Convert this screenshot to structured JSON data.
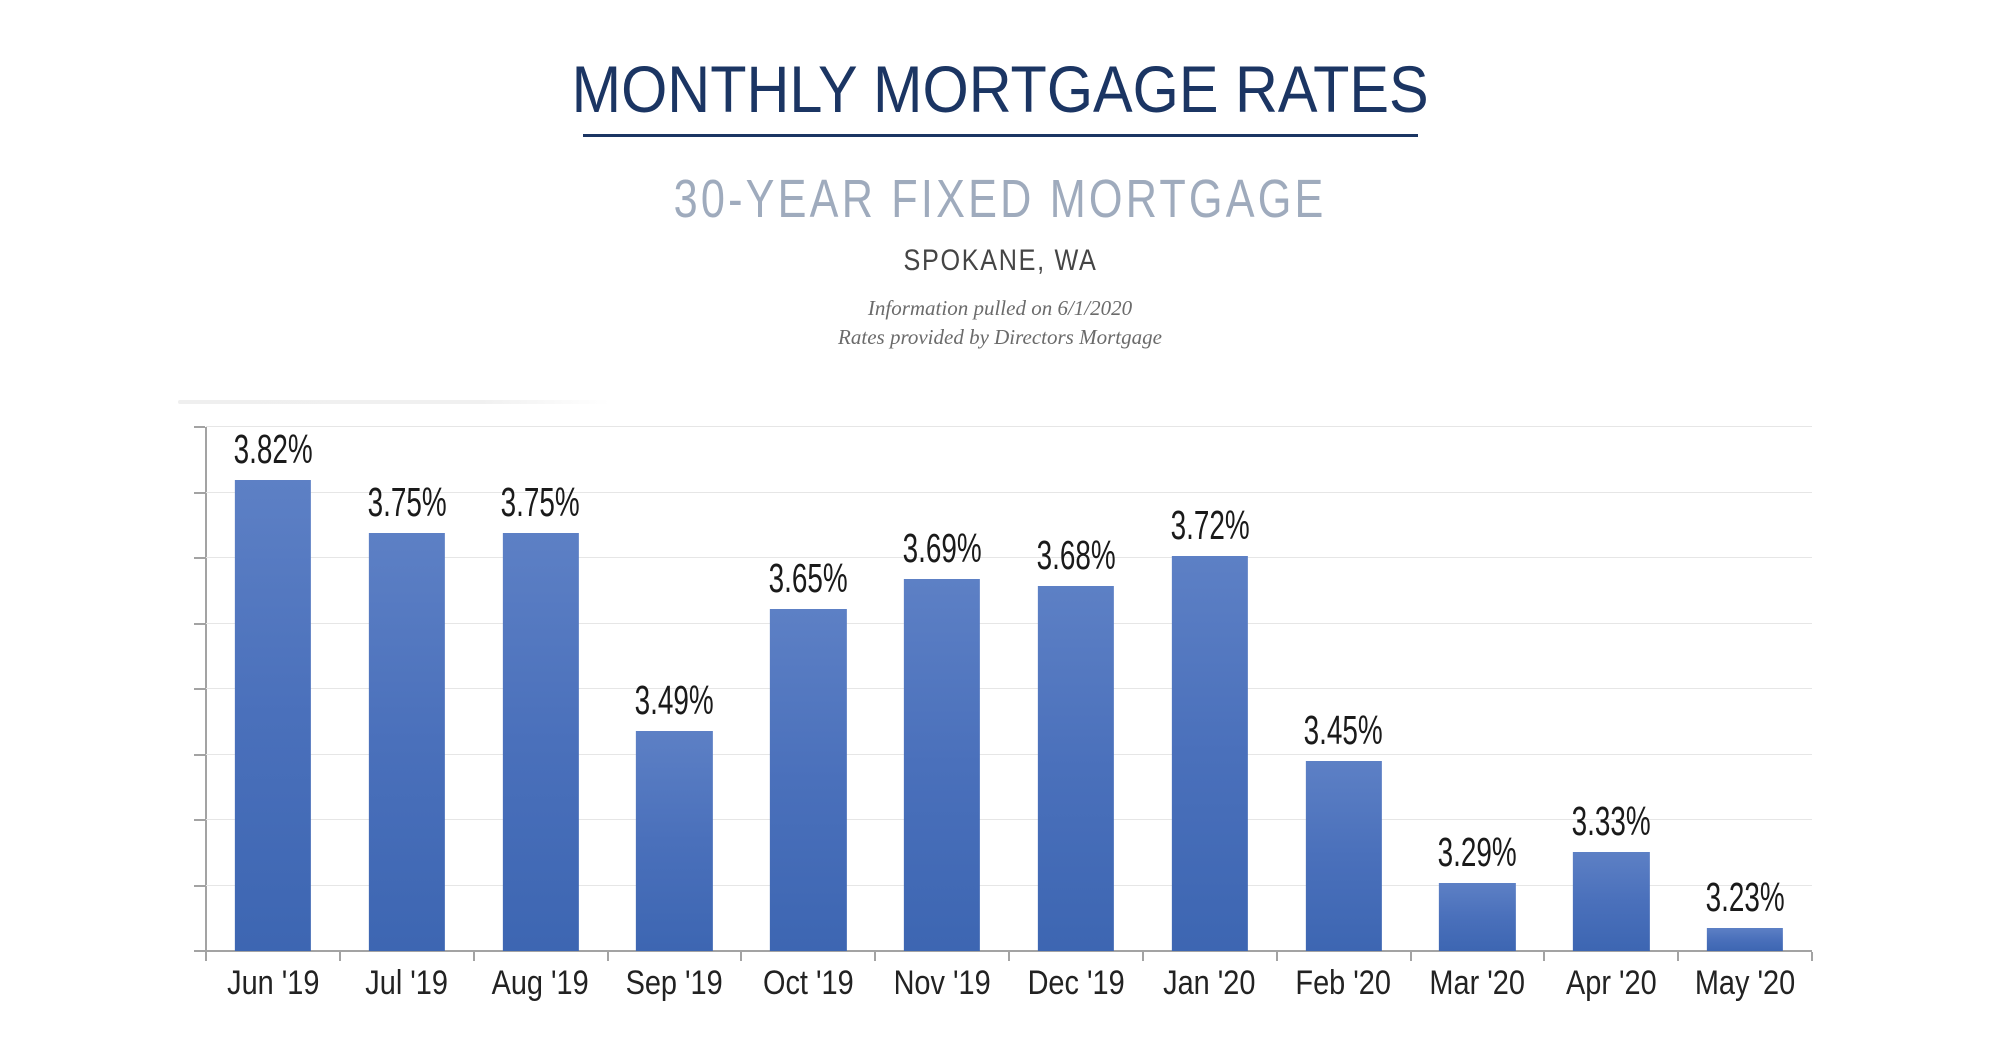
{
  "header": {
    "title": "MONTHLY MORTGAGE RATES",
    "subtitle": "30-YEAR FIXED MORTGAGE",
    "location": "SPOKANE, WA",
    "note_line1": "Information pulled on 6/1/2020",
    "note_line2": "Rates provided by Directors Mortgage"
  },
  "colors": {
    "navy": "#1b3563",
    "subtitle": "#9fabbd",
    "location": "#454545",
    "note": "#6b6b6b",
    "grid": "#e6e6e6",
    "axis": "#a3a3a3",
    "bar_top": "#5d80c5",
    "bar_mid": "#4a70bb",
    "bar_bot": "#3d66b2",
    "bar_label": "#1a1a1a",
    "x_label": "#222222"
  },
  "chart_data": {
    "type": "bar",
    "title": "MONTHLY MORTGAGE RATES",
    "subtitle": "30-YEAR FIXED MORTGAGE",
    "location": "SPOKANE, WA",
    "categories": [
      "Jun '19",
      "Jul '19",
      "Aug '19",
      "Sep '19",
      "Oct '19",
      "Nov '19",
      "Dec '19",
      "Jan '20",
      "Feb '20",
      "Mar '20",
      "Apr '20",
      "May '20"
    ],
    "values": [
      3.82,
      3.75,
      3.75,
      3.49,
      3.65,
      3.69,
      3.68,
      3.72,
      3.45,
      3.29,
      3.33,
      3.23
    ],
    "value_labels": [
      "3.82%",
      "3.75%",
      "3.75%",
      "3.49%",
      "3.65%",
      "3.69%",
      "3.68%",
      "3.72%",
      "3.45%",
      "3.29%",
      "3.33%",
      "3.23%"
    ],
    "xlabel": "",
    "ylabel": "",
    "ylim": [
      3.2,
      3.89
    ],
    "gridline_count": 9,
    "grid": true,
    "legend": false,
    "y_tick_labels_visible": false
  }
}
